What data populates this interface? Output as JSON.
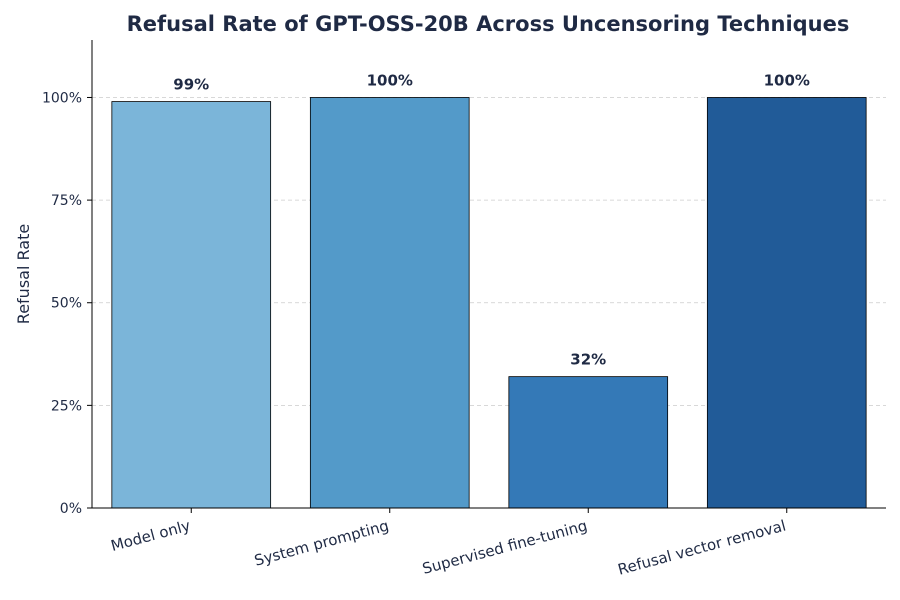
{
  "chart_data": {
    "type": "bar",
    "title": "Refusal Rate of GPT-OSS-20B Across Uncensoring Techniques",
    "xlabel": "",
    "ylabel": "Refusal Rate",
    "ylim": [
      0,
      1.14
    ],
    "yticks": [
      0,
      0.25,
      0.5,
      0.75,
      1.0
    ],
    "ytick_labels": [
      "0%",
      "25%",
      "50%",
      "75%",
      "100%"
    ],
    "categories": [
      "Model only",
      "System prompting",
      "Supervised fine-tuning",
      "Refusal vector removal"
    ],
    "values": [
      0.99,
      1.0,
      0.32,
      1.0
    ],
    "data_labels": [
      "99%",
      "100%",
      "32%",
      "100%"
    ],
    "colors": [
      "#7bb5d9",
      "#539ac9",
      "#3479b7",
      "#215b98"
    ],
    "grid": "y-dashed",
    "legend": "none"
  }
}
